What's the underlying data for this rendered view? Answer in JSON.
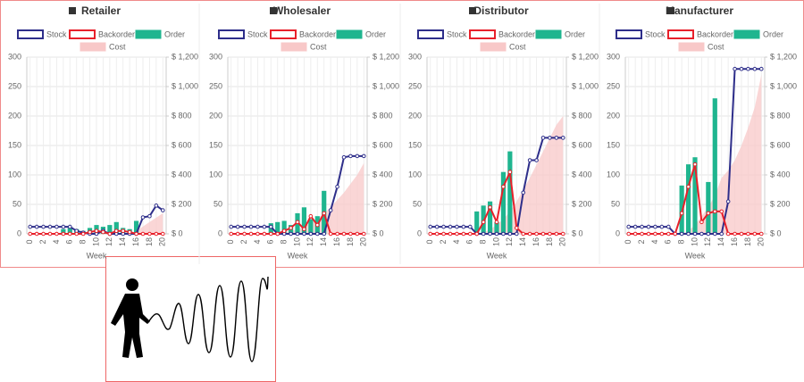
{
  "chart_data": [
    {
      "type": "combo",
      "title": "Retailer",
      "xlabel": "Week",
      "categories": [
        0,
        null,
        2,
        null,
        4,
        null,
        6,
        null,
        8,
        null,
        10,
        null,
        12,
        null,
        14,
        null,
        16,
        null,
        18,
        null,
        20
      ],
      "ylim": [
        0,
        300
      ],
      "yticks": [
        0,
        50,
        100,
        150,
        200,
        250,
        300
      ],
      "y2lim": [
        0,
        1200
      ],
      "y2ticks": [
        {
          "value": 0,
          "label": "$ 0"
        },
        {
          "value": 200,
          "label": "$ 200"
        },
        {
          "value": 400,
          "label": "$ 400"
        },
        {
          "value": 600,
          "label": "$ 600"
        },
        {
          "value": 800,
          "label": "$ 800"
        },
        {
          "value": 1000,
          "label": "$ 1,000"
        },
        {
          "value": 1200,
          "label": "$ 1,200"
        }
      ],
      "grid": true,
      "series": [
        {
          "name": "Stock",
          "kind": "line",
          "color": "#2e2e8a",
          "values": [
            12,
            12,
            12,
            12,
            12,
            12,
            12,
            5,
            2,
            0,
            0,
            5,
            0,
            0,
            0,
            0,
            0,
            28,
            30,
            48,
            40
          ]
        },
        {
          "name": "Backorder",
          "kind": "line",
          "color": "#e8202a",
          "values": [
            0,
            0,
            0,
            0,
            0,
            0,
            0,
            0,
            0,
            3,
            5,
            3,
            0,
            5,
            5,
            3,
            0,
            0,
            0,
            0,
            0
          ]
        },
        {
          "name": "Order",
          "kind": "bar",
          "color": "#1fb58f",
          "values": [
            0,
            0,
            0,
            0,
            0,
            8,
            10,
            8,
            5,
            10,
            15,
            12,
            15,
            20,
            10,
            8,
            22,
            0,
            0,
            0,
            0
          ]
        },
        {
          "name": "Cost",
          "kind": "area",
          "axis": "y2",
          "color": "#f8c8c8",
          "values": [
            0,
            0,
            0,
            0,
            0,
            0,
            0,
            0,
            0,
            0,
            0,
            0,
            0,
            0,
            0,
            0,
            20,
            50,
            80,
            110,
            140
          ]
        }
      ]
    },
    {
      "type": "combo",
      "title": "Wholesaler",
      "xlabel": "Week",
      "categories": [
        0,
        null,
        2,
        null,
        4,
        null,
        6,
        null,
        8,
        null,
        10,
        null,
        12,
        null,
        14,
        null,
        16,
        null,
        18,
        null,
        20
      ],
      "ylim": [
        0,
        300
      ],
      "yticks": [
        0,
        50,
        100,
        150,
        200,
        250,
        300
      ],
      "y2lim": [
        0,
        1200
      ],
      "y2ticks": [
        {
          "value": 0,
          "label": "$ 0"
        },
        {
          "value": 200,
          "label": "$ 200"
        },
        {
          "value": 400,
          "label": "$ 400"
        },
        {
          "value": 600,
          "label": "$ 600"
        },
        {
          "value": 800,
          "label": "$ 800"
        },
        {
          "value": 1000,
          "label": "$ 1,000"
        },
        {
          "value": 1200,
          "label": "$ 1,200"
        }
      ],
      "grid": true,
      "series": [
        {
          "name": "Stock",
          "kind": "line",
          "color": "#2e2e8a",
          "values": [
            12,
            12,
            12,
            12,
            12,
            12,
            12,
            0,
            0,
            0,
            0,
            0,
            0,
            0,
            0,
            40,
            80,
            130,
            132,
            132,
            132
          ]
        },
        {
          "name": "Backorder",
          "kind": "line",
          "color": "#e8202a",
          "values": [
            0,
            0,
            0,
            0,
            0,
            0,
            0,
            0,
            5,
            10,
            20,
            8,
            30,
            15,
            35,
            0,
            0,
            0,
            0,
            0,
            0
          ]
        },
        {
          "name": "Order",
          "kind": "bar",
          "color": "#1fb58f",
          "values": [
            0,
            0,
            0,
            0,
            0,
            0,
            18,
            20,
            22,
            15,
            35,
            45,
            25,
            30,
            73,
            0,
            0,
            0,
            0,
            0,
            0
          ]
        },
        {
          "name": "Cost",
          "kind": "area",
          "axis": "y2",
          "color": "#f8c8c8",
          "values": [
            0,
            0,
            0,
            0,
            0,
            0,
            0,
            0,
            10,
            20,
            30,
            50,
            70,
            100,
            140,
            180,
            230,
            280,
            340,
            400,
            480
          ]
        }
      ]
    },
    {
      "type": "combo",
      "title": "Distributor",
      "xlabel": "Week",
      "categories": [
        0,
        null,
        2,
        null,
        4,
        null,
        6,
        null,
        8,
        null,
        10,
        null,
        12,
        null,
        14,
        null,
        16,
        null,
        18,
        null,
        20
      ],
      "ylim": [
        0,
        300
      ],
      "yticks": [
        0,
        50,
        100,
        150,
        200,
        250,
        300
      ],
      "y2lim": [
        0,
        1200
      ],
      "y2ticks": [
        {
          "value": 0,
          "label": "$ 0"
        },
        {
          "value": 200,
          "label": "$ 200"
        },
        {
          "value": 400,
          "label": "$ 400"
        },
        {
          "value": 600,
          "label": "$ 600"
        },
        {
          "value": 800,
          "label": "$ 800"
        },
        {
          "value": 1000,
          "label": "$ 1,000"
        },
        {
          "value": 1200,
          "label": "$ 1,200"
        }
      ],
      "grid": true,
      "series": [
        {
          "name": "Stock",
          "kind": "line",
          "color": "#2e2e8a",
          "values": [
            12,
            12,
            12,
            12,
            12,
            12,
            12,
            0,
            0,
            0,
            0,
            0,
            0,
            0,
            70,
            125,
            125,
            163,
            163,
            163,
            163
          ]
        },
        {
          "name": "Backorder",
          "kind": "line",
          "color": "#e8202a",
          "values": [
            0,
            0,
            0,
            0,
            0,
            0,
            0,
            0,
            20,
            45,
            20,
            80,
            105,
            10,
            0,
            0,
            0,
            0,
            0,
            0,
            0
          ]
        },
        {
          "name": "Order",
          "kind": "bar",
          "color": "#1fb58f",
          "values": [
            0,
            0,
            0,
            0,
            0,
            0,
            0,
            38,
            48,
            55,
            20,
            105,
            140,
            0,
            0,
            0,
            0,
            0,
            0,
            0,
            0
          ]
        },
        {
          "name": "Cost",
          "kind": "area",
          "axis": "y2",
          "color": "#f8c8c8",
          "values": [
            0,
            0,
            0,
            0,
            0,
            0,
            0,
            0,
            10,
            30,
            60,
            100,
            150,
            220,
            300,
            380,
            470,
            560,
            650,
            740,
            800
          ]
        }
      ]
    },
    {
      "type": "combo",
      "title": "Manufacturer",
      "xlabel": "Week",
      "categories": [
        0,
        null,
        2,
        null,
        4,
        null,
        6,
        null,
        8,
        null,
        10,
        null,
        12,
        null,
        14,
        null,
        16,
        null,
        18,
        null,
        20
      ],
      "ylim": [
        0,
        300
      ],
      "yticks": [
        0,
        50,
        100,
        150,
        200,
        250,
        300
      ],
      "y2lim": [
        0,
        1200
      ],
      "y2ticks": [
        {
          "value": 0,
          "label": "$ 0"
        },
        {
          "value": 200,
          "label": "$ 200"
        },
        {
          "value": 400,
          "label": "$ 400"
        },
        {
          "value": 600,
          "label": "$ 600"
        },
        {
          "value": 800,
          "label": "$ 800"
        },
        {
          "value": 1000,
          "label": "$ 1,000"
        },
        {
          "value": 1200,
          "label": "$ 1,200"
        }
      ],
      "grid": true,
      "series": [
        {
          "name": "Stock",
          "kind": "line",
          "color": "#2e2e8a",
          "values": [
            12,
            12,
            12,
            12,
            12,
            12,
            12,
            0,
            0,
            0,
            0,
            0,
            0,
            0,
            0,
            55,
            280,
            280,
            280,
            280,
            280
          ]
        },
        {
          "name": "Backorder",
          "kind": "line",
          "color": "#e8202a",
          "values": [
            0,
            0,
            0,
            0,
            0,
            0,
            0,
            0,
            35,
            80,
            118,
            20,
            35,
            38,
            38,
            0,
            0,
            0,
            0,
            0,
            0
          ]
        },
        {
          "name": "Order",
          "kind": "bar",
          "color": "#1fb58f",
          "values": [
            0,
            0,
            0,
            0,
            0,
            0,
            0,
            0,
            82,
            118,
            130,
            0,
            88,
            230,
            0,
            0,
            0,
            0,
            0,
            0,
            0
          ]
        },
        {
          "name": "Cost",
          "kind": "area",
          "axis": "y2",
          "color": "#f8c8c8",
          "values": [
            0,
            0,
            0,
            0,
            0,
            0,
            0,
            0,
            0,
            20,
            60,
            120,
            180,
            260,
            380,
            430,
            500,
            600,
            720,
            860,
            1080
          ]
        }
      ]
    }
  ]
}
